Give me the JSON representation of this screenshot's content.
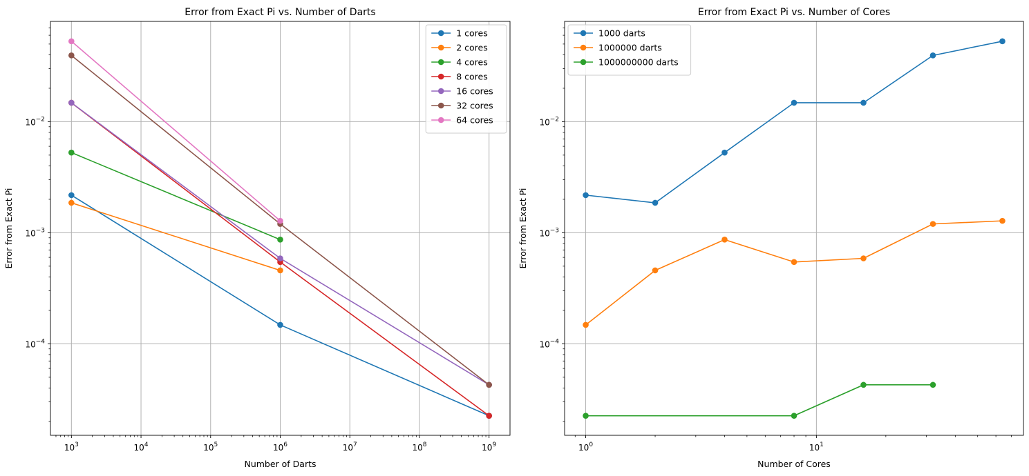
{
  "chart_data": [
    {
      "type": "line",
      "title": "Error from Exact Pi vs. Number of Darts",
      "xlabel": "Number of Darts",
      "ylabel": "Error from Exact Pi",
      "xscale": "log",
      "yscale": "log",
      "xlim": [
        500.0,
        2000000000.0
      ],
      "ylim": [
        1.5e-05,
        0.08
      ],
      "grid": true,
      "legend": "upper-right",
      "x": [
        1000,
        1000000,
        1000000000
      ],
      "x_ticks": [
        {
          "value": 1000,
          "label": "10^3"
        },
        {
          "value": 10000,
          "label": "10^4"
        },
        {
          "value": 100000,
          "label": "10^5"
        },
        {
          "value": 1000000,
          "label": "10^6"
        },
        {
          "value": 10000000,
          "label": "10^7"
        },
        {
          "value": 100000000,
          "label": "10^8"
        },
        {
          "value": 1000000000,
          "label": "10^9"
        }
      ],
      "y_ticks": [
        {
          "value": 0.0001,
          "label": "10^-4"
        },
        {
          "value": 0.001,
          "label": "10^-3"
        },
        {
          "value": 0.01,
          "label": "10^-2"
        }
      ],
      "series": [
        {
          "name": "1 cores",
          "color": "#1f77b4",
          "values": [
            0.00218,
            0.000148,
            2.25e-05
          ]
        },
        {
          "name": "2 cores",
          "color": "#ff7f0e",
          "values": [
            0.00186,
            0.000458,
            null
          ]
        },
        {
          "name": "4 cores",
          "color": "#2ca02c",
          "values": [
            0.00527,
            0.000867,
            null
          ]
        },
        {
          "name": "8 cores",
          "color": "#d62728",
          "values": [
            0.0148,
            0.000545,
            2.25e-05
          ]
        },
        {
          "name": "16 cores",
          "color": "#9467bd",
          "values": [
            0.0148,
            0.000588,
            4.27e-05
          ]
        },
        {
          "name": "32 cores",
          "color": "#8c564b",
          "values": [
            0.0395,
            0.0012,
            4.27e-05
          ]
        },
        {
          "name": "64 cores",
          "color": "#e377c2",
          "values": [
            0.053,
            0.00128,
            null
          ]
        }
      ]
    },
    {
      "type": "line",
      "title": "Error from Exact Pi vs. Number of Cores",
      "xlabel": "Number of Cores",
      "ylabel": "Error from Exact Pi",
      "xscale": "log",
      "yscale": "log",
      "xlim": [
        0.81,
        79
      ],
      "ylim": [
        1.5e-05,
        0.08
      ],
      "grid": true,
      "legend": "upper-left",
      "x": [
        1,
        2,
        4,
        8,
        16,
        32,
        64
      ],
      "x_ticks": [
        {
          "value": 1,
          "label": "10^0"
        },
        {
          "value": 10,
          "label": "10^1"
        }
      ],
      "y_ticks": [
        {
          "value": 0.0001,
          "label": "10^-4"
        },
        {
          "value": 0.001,
          "label": "10^-3"
        },
        {
          "value": 0.01,
          "label": "10^-2"
        }
      ],
      "series": [
        {
          "name": "1000 darts",
          "color": "#1f77b4",
          "values": [
            0.00218,
            0.00186,
            0.00527,
            0.0148,
            0.0148,
            0.0395,
            0.053
          ]
        },
        {
          "name": "1000000 darts",
          "color": "#ff7f0e",
          "values": [
            0.000148,
            0.000458,
            0.000867,
            0.000545,
            0.000588,
            0.0012,
            0.00128
          ]
        },
        {
          "name": "1000000000 darts",
          "color": "#2ca02c",
          "values": [
            2.25e-05,
            null,
            null,
            2.25e-05,
            4.27e-05,
            4.27e-05,
            null
          ]
        }
      ]
    }
  ]
}
